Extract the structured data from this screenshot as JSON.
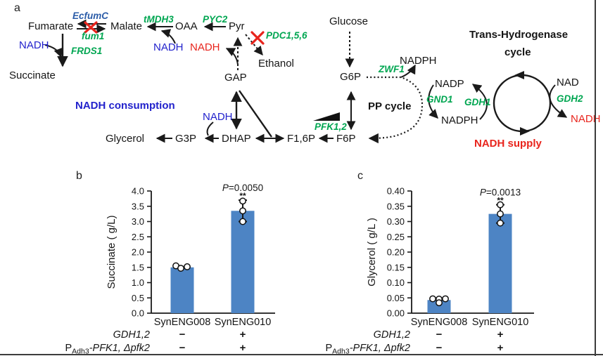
{
  "panel_labels": {
    "a": "a",
    "b": "b",
    "c": "c"
  },
  "colors": {
    "bar_blue": "#4d84c4",
    "gene_green": "#00a651",
    "gene_blue": "#2b5ca8",
    "nadh_blue": "#2222cc",
    "nadh_red": "#e8241c",
    "axis_black": "#1a1a1a"
  },
  "pathway": {
    "labels": {
      "fumarate": "Fumarate",
      "malate": "Malate",
      "oaa": "OAA",
      "pyr": "Pyr",
      "ethanol": "Ethanol",
      "succinate": "Succinate",
      "gap": "GAP",
      "glycerol": "Glycerol",
      "g3p": "G3P",
      "dhap": "DHAP",
      "f16p": "F1,6P",
      "f6p": "F6P",
      "g6p": "G6P",
      "glucose": "Glucose",
      "nadph1": "NADPH",
      "nadp": "NADP",
      "nadph2": "NADPH",
      "nad": "NAD",
      "nadh1": "NADH",
      "nadh2": "NADH",
      "nadh3": "NADH",
      "nadh4": "NADH",
      "nadh5": "NADH",
      "ecfumc": "EcfumC",
      "fum1": "fum1",
      "tmdh3": "tMDH3",
      "pyc2": "PYC2",
      "pdc": "PDC1,5,6",
      "frds1": "FRDS1",
      "zwf1": "ZWF1",
      "pfk": "PFK1,2",
      "gnd1": "GND1",
      "gdh1": "GDH1",
      "gdh2": "GDH2",
      "pp_cycle": "PP cycle",
      "trans_line1": "Trans-Hydrogenase",
      "trans_line2": "cycle",
      "nadh_consumption": "NADH consumption",
      "nadh_supply": "NADH supply"
    }
  },
  "chart_data": [
    {
      "type": "bar",
      "panel": "b",
      "ylabel": "Succinate ( g/L)",
      "ymax": 4.0,
      "ymin": 0.0,
      "ytick_step": 0.5,
      "tick_decimals": 1,
      "categories": [
        "SynENG008",
        "SynENG010"
      ],
      "values": [
        1.5,
        3.35
      ],
      "points": [
        [
          1.55,
          1.47,
          1.52
        ],
        [
          3.67,
          3.35,
          3.0
        ]
      ],
      "point_dx": [
        [
          -9,
          -2,
          7
        ],
        [
          0,
          0,
          0
        ]
      ],
      "error_low": [
        null,
        3.0
      ],
      "error_high": [
        null,
        3.7
      ],
      "p_value_prefix": "P",
      "p_value_rest": "=0.0050",
      "significance": "**",
      "sig_bar": 1,
      "genotype_rows": [
        {
          "label": "GDH1,2",
          "italic": true,
          "values": [
            "−",
            "+"
          ]
        },
        {
          "label_parts": [
            {
              "t": "P"
            },
            {
              "t": "Adh3",
              "sub": true
            },
            {
              "t": "-PFK1, Δpfk2",
              "italic": true
            }
          ],
          "values": [
            "−",
            "+"
          ]
        }
      ]
    },
    {
      "type": "bar",
      "panel": "c",
      "ylabel": "Glycerol ( g/L )",
      "ymax": 0.4,
      "ymin": 0.0,
      "ytick_step": 0.05,
      "tick_decimals": 2,
      "categories": [
        "SynENG008",
        "SynENG010"
      ],
      "values": [
        0.043,
        0.325
      ],
      "points": [
        [
          0.047,
          0.046,
          0.047,
          0.034
        ],
        [
          0.355,
          0.325,
          0.295
        ]
      ],
      "point_dx": [
        [
          -9,
          0,
          9,
          0
        ],
        [
          0,
          0,
          0
        ]
      ],
      "error_low": [
        null,
        0.295
      ],
      "error_high": [
        null,
        0.355
      ],
      "p_value_prefix": "P",
      "p_value_rest": "=0.0013",
      "significance": "**",
      "sig_bar": 1,
      "genotype_rows": [
        {
          "label": "GDH1,2",
          "italic": true,
          "values": [
            "−",
            "+"
          ]
        },
        {
          "label_parts": [
            {
              "t": "P"
            },
            {
              "t": "Adh3",
              "sub": true
            },
            {
              "t": "-PFK1, Δpfk2",
              "italic": true
            }
          ],
          "values": [
            "−",
            "+"
          ]
        }
      ]
    }
  ]
}
